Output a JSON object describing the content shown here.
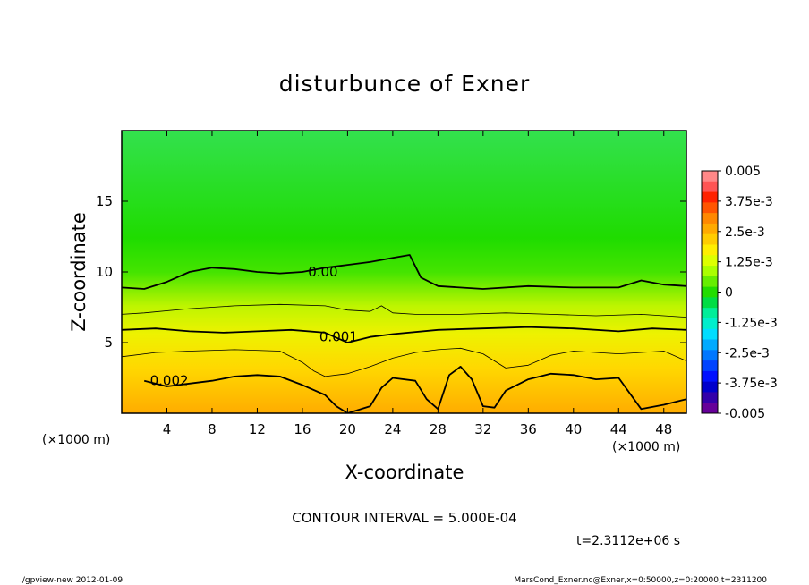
{
  "chart_data": {
    "type": "heatmap",
    "title": "disturbunce of Exner",
    "xlabel": "X-coordinate",
    "ylabel": "Z-coordinate",
    "x_unit": "(×1000 m)",
    "y_unit": "(×1000 m)",
    "xlim": [
      0,
      50
    ],
    "ylim": [
      0,
      20
    ],
    "x_ticks": [
      4,
      8,
      12,
      16,
      20,
      24,
      28,
      32,
      36,
      40,
      44,
      48
    ],
    "y_ticks": [
      5,
      10,
      15
    ],
    "grid": false,
    "colorbar": {
      "placement": "right",
      "range": [
        -0.005,
        0.005
      ],
      "tick_labels": [
        "0.005",
        "3.75e-3",
        "2.5e-3",
        "1.25e-3",
        "0",
        "-1.25e-3",
        "-2.5e-3",
        "-3.75e-3",
        "-0.005"
      ],
      "colors": [
        "#ff8888",
        "#ff5555",
        "#ff2200",
        "#ff5500",
        "#ff8800",
        "#ffaa00",
        "#ffcc00",
        "#ffee00",
        "#ddff00",
        "#aaff00",
        "#66ee00",
        "#22dd00",
        "#00dd44",
        "#00ee99",
        "#00eecc",
        "#00ddff",
        "#00aaff",
        "#0077ff",
        "#0044ff",
        "#0011ff",
        "#0000cc",
        "#3300aa",
        "#660099"
      ]
    },
    "contours": [
      {
        "label": "0.00",
        "value": 0.0,
        "x": [
          0,
          2,
          4,
          6,
          8,
          10,
          12,
          14,
          16,
          18,
          20,
          22,
          24,
          25.5,
          26.5,
          28,
          32,
          36,
          40,
          44,
          46,
          48,
          50
        ],
        "y": [
          8.9,
          8.8,
          9.3,
          10.0,
          10.3,
          10.2,
          10.0,
          9.9,
          10.0,
          10.3,
          10.5,
          10.7,
          11.0,
          11.2,
          9.6,
          9.0,
          8.8,
          9.0,
          8.9,
          8.9,
          9.4,
          9.1,
          9.0
        ],
        "label_x": 16.5,
        "label_y": 10.0
      },
      {
        "label": "",
        "value": -0.0005,
        "x": [
          0,
          2,
          6,
          10,
          14,
          18,
          20,
          22,
          23,
          24,
          26,
          30,
          34,
          38,
          42,
          46,
          50
        ],
        "y": [
          7.0,
          7.1,
          7.4,
          7.6,
          7.7,
          7.6,
          7.3,
          7.2,
          7.6,
          7.1,
          7.0,
          7.0,
          7.1,
          7.0,
          6.9,
          7.0,
          6.8
        ],
        "label_x": null,
        "label_y": null
      },
      {
        "label": "0.001",
        "value": 0.001,
        "x": [
          0,
          3,
          6,
          9,
          12,
          15,
          18,
          20,
          22,
          24,
          28,
          32,
          36,
          40,
          44,
          47,
          50
        ],
        "y": [
          5.9,
          6.0,
          5.8,
          5.7,
          5.8,
          5.9,
          5.7,
          5.0,
          5.4,
          5.6,
          5.9,
          6.0,
          6.1,
          6.0,
          5.8,
          6.0,
          5.9
        ],
        "label_x": 17.5,
        "label_y": 5.4
      },
      {
        "label": "",
        "value": 0.0015,
        "x": [
          0,
          3,
          6,
          10,
          14,
          16,
          17,
          18,
          20,
          22,
          24,
          26,
          28,
          30,
          32,
          34,
          36,
          38,
          40,
          44,
          48,
          50
        ],
        "y": [
          4.0,
          4.3,
          4.4,
          4.5,
          4.4,
          3.6,
          3.0,
          2.6,
          2.8,
          3.3,
          3.9,
          4.3,
          4.5,
          4.6,
          4.2,
          3.2,
          3.4,
          4.1,
          4.4,
          4.2,
          4.4,
          3.7
        ],
        "label_x": null,
        "label_y": null
      },
      {
        "label": "0.002",
        "value": 0.002,
        "x": [
          2,
          4,
          6,
          8,
          10,
          12,
          14,
          16,
          18,
          19,
          20,
          22,
          23,
          24,
          26,
          27,
          28,
          29,
          30,
          31,
          32,
          33,
          34,
          36,
          38,
          40,
          42,
          44,
          46,
          48,
          50
        ],
        "y": [
          2.3,
          1.9,
          2.1,
          2.3,
          2.6,
          2.7,
          2.6,
          2.0,
          1.3,
          0.5,
          0.0,
          0.5,
          1.8,
          2.5,
          2.3,
          1.0,
          0.3,
          2.7,
          3.3,
          2.4,
          0.5,
          0.4,
          1.6,
          2.4,
          2.8,
          2.7,
          2.4,
          2.5,
          0.3,
          0.6,
          1.0
        ],
        "label_x": 2.5,
        "label_y": 2.3
      }
    ],
    "annotations": {
      "contour_interval": "CONTOUR INTERVAL = 5.000E-04",
      "time": "t=2.3112e+06 s"
    }
  },
  "footer": {
    "left": "./gpview-new   2012-01-09",
    "right": "MarsCond_Exner.nc@Exner,x=0:50000,z=0:20000,t=2311200"
  }
}
